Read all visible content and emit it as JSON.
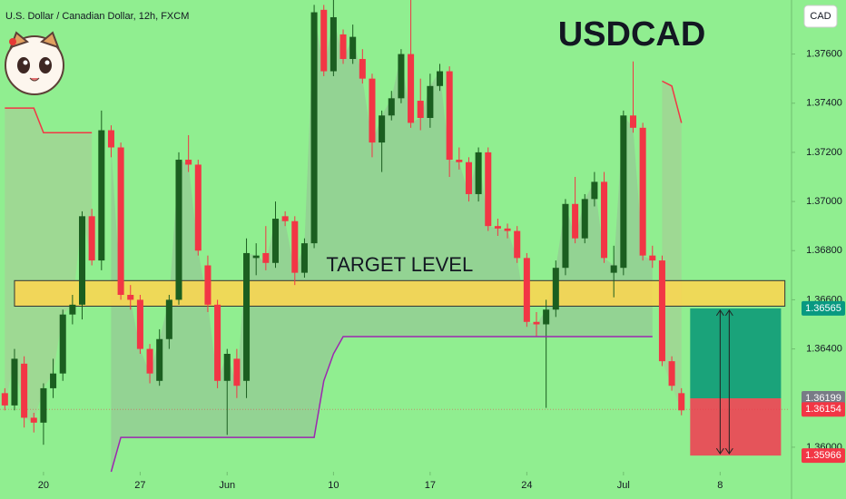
{
  "chart_data": {
    "type": "candlestick",
    "title": "USDCAD",
    "subtitle": "U.S. Dollar / Canadian Dollar, 12h, FXCM",
    "currency": "CAD",
    "up_color": "#1b5e20",
    "down_color": "#f23645",
    "open": [
      1.3622,
      1.3617,
      1.3634,
      1.3612,
      1.361,
      1.3624,
      1.363,
      1.3654,
      1.3658,
      1.3694,
      1.3676,
      1.3729,
      1.3722,
      1.3662,
      1.366,
      1.364,
      1.3627,
      1.3644,
      1.366,
      1.3717,
      1.3715,
      1.3674,
      1.3658,
      1.3627,
      1.3636,
      1.3627,
      1.3677,
      1.3679,
      1.3675,
      1.3694,
      1.3692,
      1.3671,
      1.3683,
      1.3778,
      1.3753,
      1.3768,
      1.3758,
      1.3758,
      1.375,
      1.3724,
      1.3735,
      1.3742,
      1.376,
      1.3741,
      1.3734,
      1.3747,
      1.3753,
      1.3717,
      1.3716,
      1.3703,
      1.372,
      1.369,
      1.3689,
      1.3688,
      1.3677,
      1.3651,
      1.365,
      1.3656,
      1.3673,
      1.3699,
      1.3685,
      1.3701,
      1.3708,
      1.3671,
      1.3673,
      1.3735,
      1.373,
      1.3678,
      1.3676,
      1.3635,
      1.3622
    ],
    "high": [
      1.3624,
      1.364,
      1.3637,
      1.3614,
      1.3626,
      1.3636,
      1.3656,
      1.3662,
      1.3696,
      1.3697,
      1.3737,
      1.3731,
      1.3724,
      1.3666,
      1.3662,
      1.3642,
      1.3648,
      1.3662,
      1.372,
      1.3727,
      1.3717,
      1.3678,
      1.366,
      1.364,
      1.364,
      1.3685,
      1.3683,
      1.369,
      1.37,
      1.3696,
      1.3694,
      1.3685,
      1.378,
      1.378,
      1.3782,
      1.377,
      1.3772,
      1.3762,
      1.3752,
      1.3737,
      1.3745,
      1.3762,
      1.3782,
      1.375,
      1.3752,
      1.3756,
      1.3755,
      1.3722,
      1.3718,
      1.3722,
      1.3722,
      1.3693,
      1.3691,
      1.369,
      1.3679,
      1.3655,
      1.366,
      1.3676,
      1.3701,
      1.371,
      1.3703,
      1.3712,
      1.3712,
      1.3682,
      1.3737,
      1.3757,
      1.3732,
      1.3682,
      1.3678,
      1.3637,
      1.3624
    ],
    "low": [
      1.3615,
      1.3615,
      1.3608,
      1.3606,
      1.3601,
      1.362,
      1.3627,
      1.365,
      1.3652,
      1.3674,
      1.3672,
      1.3718,
      1.366,
      1.3656,
      1.3638,
      1.3626,
      1.3625,
      1.364,
      1.3658,
      1.3712,
      1.3678,
      1.3655,
      1.3624,
      1.3605,
      1.362,
      1.362,
      1.367,
      1.3672,
      1.3673,
      1.369,
      1.3666,
      1.3669,
      1.3681,
      1.3751,
      1.3751,
      1.3756,
      1.3756,
      1.3748,
      1.3718,
      1.3712,
      1.3733,
      1.374,
      1.373,
      1.3729,
      1.373,
      1.3745,
      1.371,
      1.3713,
      1.37,
      1.37,
      1.3688,
      1.3686,
      1.3685,
      1.3675,
      1.3649,
      1.3645,
      1.3616,
      1.3653,
      1.367,
      1.3683,
      1.3683,
      1.3698,
      1.3675,
      1.3661,
      1.367,
      1.3728,
      1.3676,
      1.3673,
      1.3633,
      1.3623,
      1.3613
    ],
    "close": [
      1.3617,
      1.3636,
      1.3612,
      1.361,
      1.3624,
      1.363,
      1.3654,
      1.3658,
      1.3694,
      1.3676,
      1.3729,
      1.3722,
      1.3662,
      1.366,
      1.364,
      1.363,
      1.3644,
      1.366,
      1.3717,
      1.3715,
      1.368,
      1.3658,
      1.3627,
      1.3638,
      1.3625,
      1.3679,
      1.3678,
      1.3675,
      1.3693,
      1.3692,
      1.3671,
      1.3683,
      1.3777,
      1.3753,
      1.3775,
      1.3758,
      1.3767,
      1.375,
      1.3724,
      1.3735,
      1.3742,
      1.376,
      1.3732,
      1.3734,
      1.3747,
      1.3753,
      1.3717,
      1.3716,
      1.3703,
      1.372,
      1.369,
      1.3689,
      1.3688,
      1.3677,
      1.3651,
      1.365,
      1.3656,
      1.3673,
      1.3699,
      1.3685,
      1.3701,
      1.3708,
      1.3677,
      1.3674,
      1.3735,
      1.373,
      1.3678,
      1.3676,
      1.3635,
      1.3625,
      1.3615
    ],
    "stop_upper": {
      "color": "#f23645",
      "values": [
        1.3738,
        1.3738,
        1.3738,
        1.3738,
        1.3728,
        1.3728,
        1.3728,
        1.3728,
        1.3728,
        1.3728,
        null,
        null,
        null,
        null,
        null,
        null,
        null,
        null,
        null,
        null,
        null,
        null,
        null,
        null,
        null,
        null,
        null,
        null,
        null,
        null,
        null,
        null,
        null,
        null,
        null,
        null,
        null,
        null,
        null,
        null,
        null,
        null,
        null,
        null,
        null,
        null,
        null,
        null,
        null,
        null,
        null,
        null,
        null,
        null,
        null,
        null,
        null,
        null,
        null,
        null,
        null,
        null,
        null,
        null,
        null,
        null,
        null,
        null,
        1.3749,
        1.3747,
        1.3732
      ]
    },
    "stop_lower": {
      "color": "#9c27b0",
      "values": [
        null,
        null,
        null,
        null,
        null,
        null,
        null,
        null,
        null,
        null,
        null,
        1.359,
        1.3604,
        1.3604,
        1.3604,
        1.3604,
        1.3604,
        1.3604,
        1.3604,
        1.3604,
        1.3604,
        1.3604,
        1.3604,
        1.3604,
        1.3604,
        1.3604,
        1.3604,
        1.3604,
        1.3604,
        1.3604,
        1.3604,
        1.3604,
        1.3604,
        1.3627,
        1.3638,
        1.3645,
        1.3645,
        1.3645,
        1.3645,
        1.3645,
        1.3645,
        1.3645,
        1.3645,
        1.3645,
        1.3645,
        1.3645,
        1.3645,
        1.3645,
        1.3645,
        1.3645,
        1.3645,
        1.3645,
        1.3645,
        1.3645,
        1.3645,
        1.3645,
        1.3645,
        1.3645,
        1.3645,
        1.3645,
        1.3645,
        1.3645,
        1.3645,
        1.3645,
        1.3645,
        1.3645,
        1.3645,
        1.3645,
        null,
        null,
        null
      ]
    },
    "zone": {
      "low": 1.36574,
      "high": 1.36678,
      "start": 1,
      "end": 80.7,
      "label": "TARGET LEVEL",
      "color": "#ffd54f"
    },
    "position": {
      "start": 70.9,
      "end": 80.3,
      "entry": 1.36199,
      "target": 1.36565,
      "stop": 1.35966,
      "target_color": "#1aa37a",
      "stop_color": "#e5545a"
    },
    "price_labels": [
      {
        "value": 1.36565,
        "label": "1.36565",
        "color": "#089981"
      },
      {
        "value": 1.36199,
        "label": "1.36199",
        "color": "#787b86"
      },
      {
        "value": 1.36154,
        "label": "1.36154",
        "color": "#f23645"
      },
      {
        "value": 1.35966,
        "label": "1.35966",
        "color": "#f23645"
      }
    ],
    "xlim": [
      -0.5,
      81.2
    ],
    "ylim": [
      1.359,
      1.3782
    ],
    "xticks": [
      {
        "value": 4,
        "label": "20"
      },
      {
        "value": 14,
        "label": "27"
      },
      {
        "value": 23,
        "label": "Jun"
      },
      {
        "value": 34,
        "label": "10"
      },
      {
        "value": 44,
        "label": "17"
      },
      {
        "value": 54,
        "label": "24"
      },
      {
        "value": 64,
        "label": "Jul"
      },
      {
        "value": 74,
        "label": "8"
      }
    ],
    "yticks": [
      {
        "value": 1.376,
        "label": "1.37600"
      },
      {
        "value": 1.374,
        "label": "1.37400"
      },
      {
        "value": 1.372,
        "label": "1.37200"
      },
      {
        "value": 1.37,
        "label": "1.37000"
      },
      {
        "value": 1.368,
        "label": "1.36800"
      },
      {
        "value": 1.366,
        "label": "1.36600"
      },
      {
        "value": 1.364,
        "label": "1.36400"
      },
      {
        "value": 1.36,
        "label": "1.36000"
      }
    ]
  }
}
